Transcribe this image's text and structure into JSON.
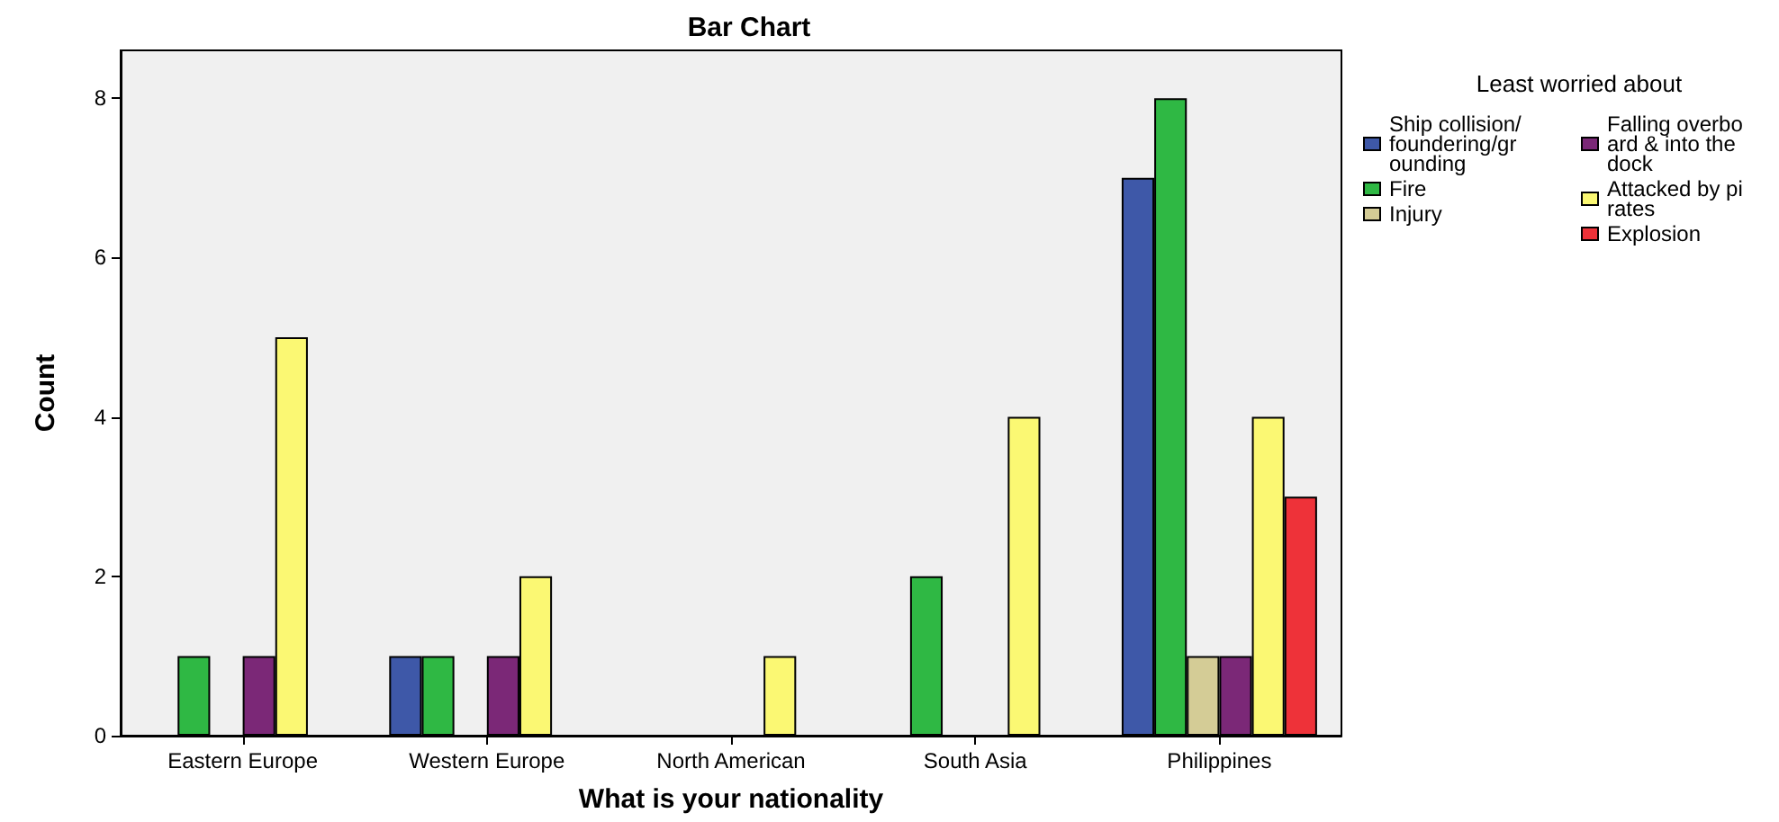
{
  "chart_data": {
    "type": "bar",
    "title": "Bar Chart",
    "xlabel": "What is your nationality",
    "ylabel": "Count",
    "legend_title": "Least worried about",
    "categories": [
      "Eastern Europe",
      "Western Europe",
      "North American",
      "South Asia",
      "Philippines"
    ],
    "series": [
      {
        "name": "Ship collision/foundering/grounding",
        "color": "#3e58a8",
        "values": [
          null,
          1,
          null,
          null,
          7
        ]
      },
      {
        "name": "Fire",
        "color": "#2fb844",
        "values": [
          1,
          1,
          null,
          2,
          8
        ]
      },
      {
        "name": "Injury",
        "color": "#d4cc96",
        "values": [
          null,
          null,
          null,
          null,
          1
        ]
      },
      {
        "name": "Falling overboard & into the dock",
        "color": "#7b2877",
        "values": [
          1,
          1,
          null,
          null,
          1
        ]
      },
      {
        "name": "Attacked by pirates",
        "color": "#fbf873",
        "values": [
          5,
          2,
          1,
          4,
          4
        ]
      },
      {
        "name": "Explosion",
        "color": "#ee3239",
        "values": [
          null,
          null,
          null,
          null,
          3
        ]
      }
    ],
    "ylim": [
      0,
      8.6
    ],
    "yticks": [
      0,
      2,
      4,
      6,
      8
    ],
    "grid": false,
    "legend": "right"
  }
}
